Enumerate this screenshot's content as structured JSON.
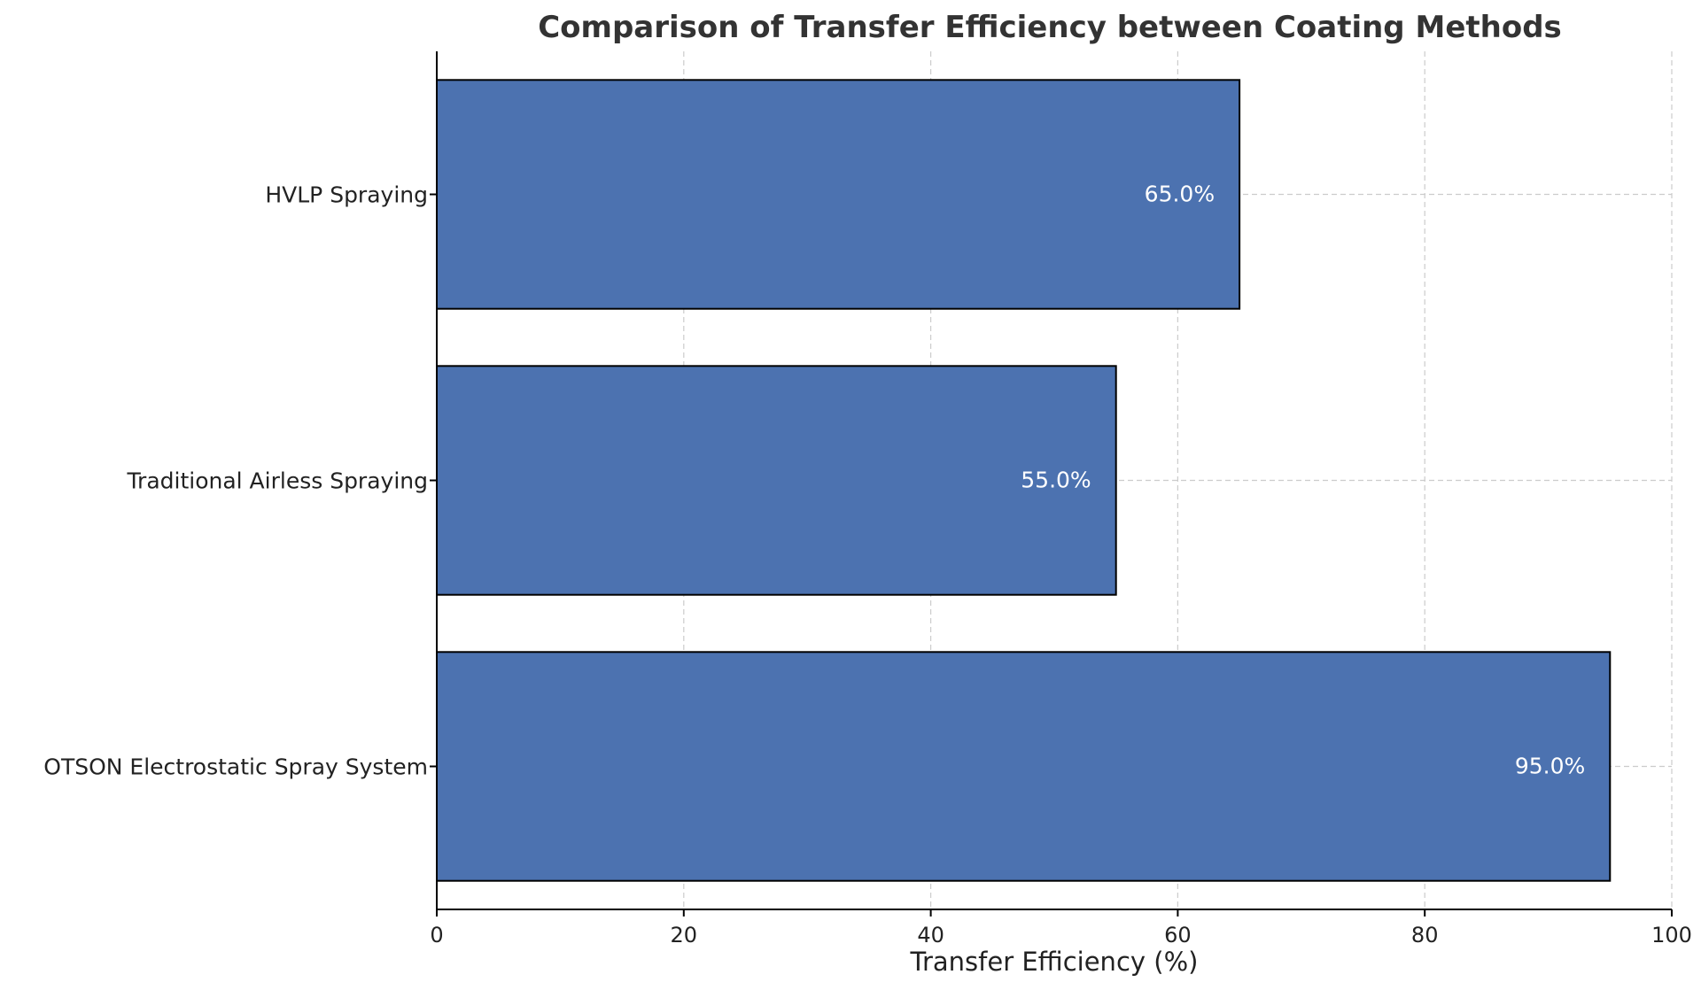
{
  "chart_data": {
    "type": "bar",
    "orientation": "horizontal",
    "title": "Comparison of Transfer Efficiency between Coating Methods",
    "xlabel": "Transfer Efficiency (%)",
    "ylabel": "",
    "xlim": [
      0,
      100
    ],
    "xticks": [
      0,
      20,
      40,
      60,
      80,
      100
    ],
    "xtick_labels": [
      "0",
      "20",
      "40",
      "60",
      "80",
      "100"
    ],
    "grid": true,
    "categories": [
      "OTSON Electrostatic Spray System",
      "Traditional Airless Spraying",
      "HVLP Spraying"
    ],
    "values": [
      95,
      55,
      65
    ],
    "value_labels": [
      "95.0%",
      "55.0%",
      "65.0%"
    ],
    "bar_color": "#4c72b0",
    "bar_edge_color": "#000000",
    "value_label_color": "#ffffff"
  }
}
